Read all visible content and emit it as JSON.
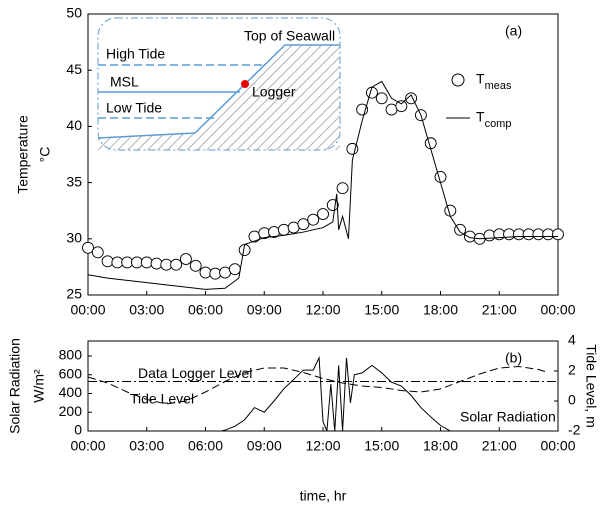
{
  "charts": [
    {
      "type": "scatter-line",
      "panel_tag": "(a)",
      "ylabel": "Temperature",
      "ylabel_unit": "°C",
      "ylim": [
        25,
        50
      ],
      "yticks": [
        25,
        30,
        35,
        40,
        45,
        50
      ],
      "xlim": [
        0,
        24
      ],
      "xticks": [
        {
          "value": 0,
          "label": "00:00"
        },
        {
          "value": 3,
          "label": "03:00"
        },
        {
          "value": 6,
          "label": "06:00"
        },
        {
          "value": 9,
          "label": "09:00"
        },
        {
          "value": 12,
          "label": "12:00"
        },
        {
          "value": 15,
          "label": "15:00"
        },
        {
          "value": 18,
          "label": "18:00"
        },
        {
          "value": 21,
          "label": "21:00"
        },
        {
          "value": 24,
          "label": "00:00"
        }
      ],
      "series": [
        {
          "name": "Tmeas",
          "mode": "markers",
          "color": "#000000",
          "x": [
            0,
            0.5,
            1,
            1.5,
            2,
            2.5,
            3,
            3.5,
            4,
            4.5,
            5,
            5.5,
            6,
            6.5,
            7,
            7.5,
            8,
            8.5,
            9,
            9.5,
            10,
            10.5,
            11,
            11.5,
            12,
            12.5,
            13,
            13.5,
            14,
            14.5,
            15,
            15.5,
            16,
            16.5,
            17,
            17.5,
            18,
            18.5,
            19,
            19.5,
            20,
            20.5,
            21,
            21.5,
            22,
            22.5,
            23,
            23.5,
            24
          ],
          "values": [
            29.2,
            28.8,
            28.0,
            27.9,
            27.9,
            27.9,
            27.9,
            27.8,
            27.7,
            27.7,
            28.2,
            27.6,
            27.0,
            26.9,
            27.0,
            27.3,
            29.0,
            30.2,
            30.5,
            30.6,
            30.8,
            31.0,
            31.3,
            31.7,
            32.2,
            33.0,
            34.5,
            38.0,
            41.5,
            43.0,
            42.5,
            41.5,
            41.8,
            42.5,
            41.0,
            38.5,
            35.5,
            32.5,
            30.8,
            30.2,
            30.0,
            30.3,
            30.4,
            30.4,
            30.4,
            30.4,
            30.4,
            30.4,
            30.4
          ]
        },
        {
          "name": "Tcomp",
          "mode": "line",
          "color": "#000000",
          "x": [
            0,
            1,
            2,
            3,
            4,
            5,
            6,
            7,
            7.7,
            8,
            8.5,
            9,
            10,
            11,
            12,
            12.5,
            12.7,
            12.8,
            13,
            13.3,
            13.5,
            14,
            14.5,
            15,
            15.5,
            16,
            16.5,
            17,
            17.5,
            18,
            18.5,
            19,
            19.5,
            20,
            21,
            22,
            23,
            24
          ],
          "values": [
            26.8,
            26.5,
            26.3,
            26.1,
            25.9,
            25.7,
            25.5,
            25.6,
            26.5,
            29.5,
            29.8,
            30.1,
            30.3,
            30.6,
            31.0,
            31.5,
            34,
            30.8,
            32,
            30,
            37,
            40.5,
            43.5,
            44,
            42.5,
            42,
            42.8,
            41,
            38,
            35,
            32,
            30.6,
            30.1,
            30,
            30.1,
            30.2,
            30.2,
            30.2
          ]
        }
      ],
      "inset": {
        "high_tide": "High Tide",
        "msl": "MSL",
        "low_tide": "Low Tide",
        "top_of_seawall": "Top of Seawall",
        "logger": "Logger"
      }
    },
    {
      "type": "line",
      "panel_tag": "(b)",
      "xlabel": "time, hr",
      "ylabel": "Solar Radiation",
      "ylabel_unit": "W/m²",
      "y2label": "Tide Level, m",
      "ylim": [
        0,
        960
      ],
      "yticks": [
        0,
        200,
        400,
        600,
        800
      ],
      "y2lim": [
        -2,
        4
      ],
      "y2ticks": [
        -2,
        0,
        2,
        4
      ],
      "xlim": [
        0,
        24
      ],
      "xticks": [
        {
          "value": 0,
          "label": "00:00"
        },
        {
          "value": 3,
          "label": "03:00"
        },
        {
          "value": 6,
          "label": "06:00"
        },
        {
          "value": 9,
          "label": "09:00"
        },
        {
          "value": 12,
          "label": "12:00"
        },
        {
          "value": 15,
          "label": "15:00"
        },
        {
          "value": 18,
          "label": "18:00"
        },
        {
          "value": 21,
          "label": "21:00"
        },
        {
          "value": 24,
          "label": "00:00"
        }
      ],
      "series": [
        {
          "name": "Solar Radiation",
          "color": "#000000",
          "dash": "none",
          "x": [
            0,
            6.8,
            7,
            7.5,
            8,
            8.5,
            9,
            9.5,
            10,
            10.5,
            11,
            11.5,
            11.8,
            12,
            12.2,
            12.4,
            12.6,
            12.8,
            13,
            13.2,
            13.4,
            13.6,
            14,
            14.5,
            15,
            15.5,
            16,
            16.5,
            17,
            17.5,
            18,
            18.5,
            24
          ],
          "values": [
            0,
            0,
            10,
            50,
            120,
            250,
            200,
            320,
            450,
            550,
            650,
            650,
            780,
            100,
            0,
            500,
            0,
            700,
            0,
            780,
            300,
            600,
            620,
            700,
            620,
            520,
            480,
            380,
            250,
            150,
            60,
            0,
            0
          ]
        },
        {
          "name": "Tide Level",
          "color": "#000000",
          "dash": "8 4",
          "axis": "y2",
          "x": [
            0,
            1,
            2,
            3,
            4,
            5,
            6,
            7,
            8,
            9,
            10,
            11,
            12,
            13,
            14,
            15,
            16,
            17,
            18,
            19,
            20,
            21,
            22,
            23,
            23.5
          ],
          "values": [
            1.6,
            1.2,
            0.6,
            0.1,
            -0.2,
            0.0,
            0.6,
            1.3,
            1.9,
            2.2,
            2.2,
            1.9,
            1.5,
            1.2,
            1.0,
            0.9,
            0.7,
            0.6,
            0.8,
            1.3,
            1.8,
            2.2,
            2.3,
            2.1,
            1.9
          ]
        }
      ],
      "reference_lines": [
        {
          "label": "Data Logger Level",
          "value": 1.3,
          "axis": "y2"
        }
      ]
    }
  ]
}
